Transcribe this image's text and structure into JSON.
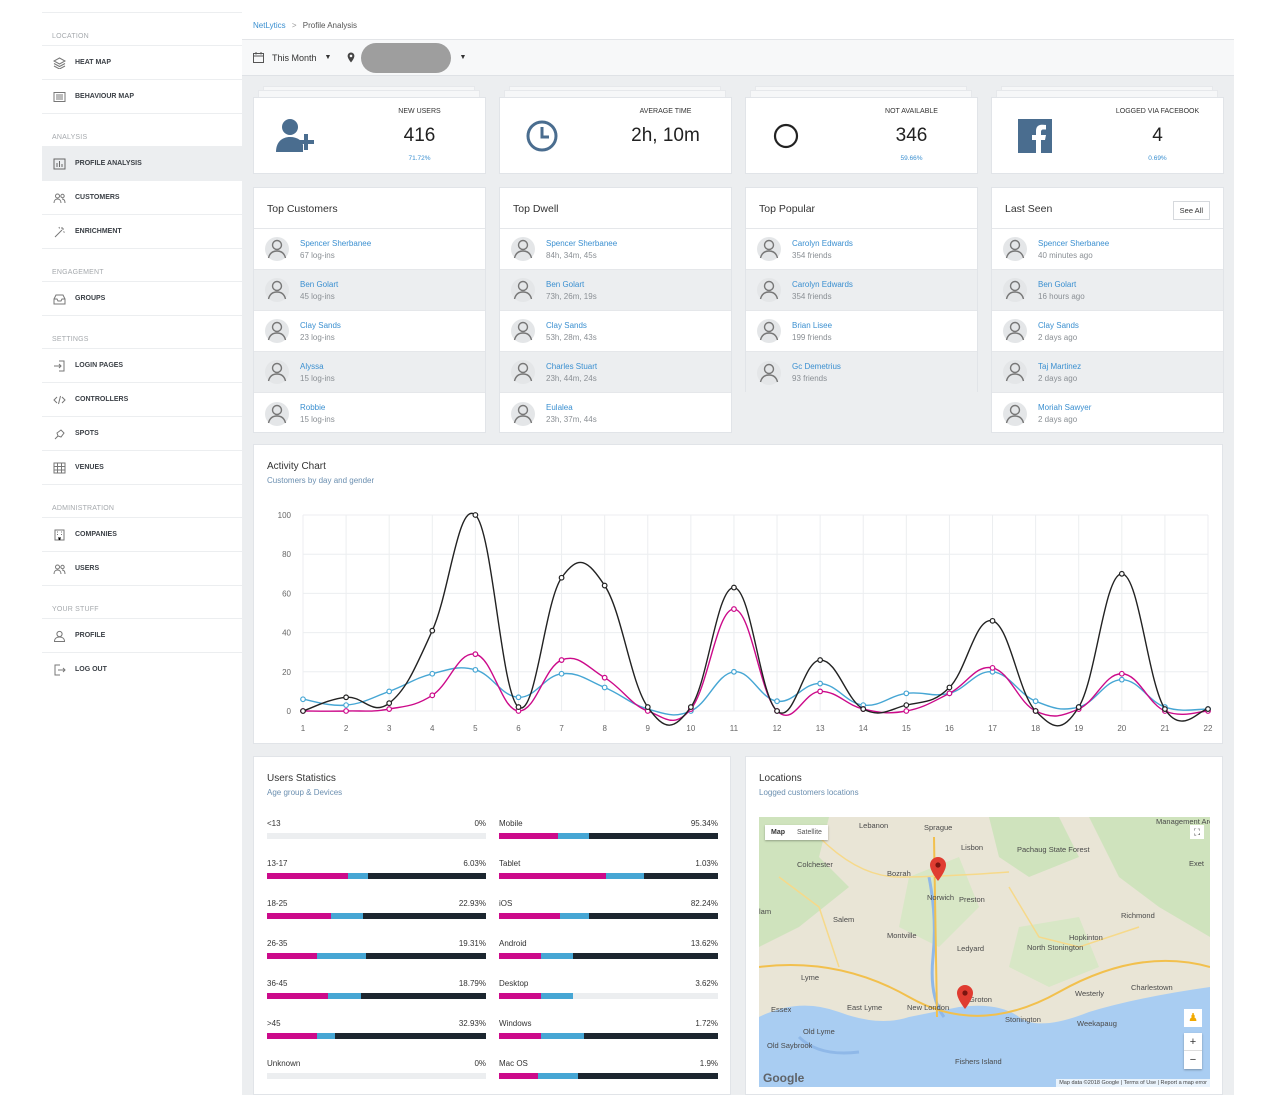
{
  "breadcrumb": {
    "root": "NetLytics",
    "separator": ">",
    "current": "Profile Analysis"
  },
  "toolbar": {
    "period": "This Month"
  },
  "sidebar": {
    "sections": [
      {
        "title": "LOCATION",
        "items": [
          {
            "label": "HEAT MAP",
            "icon": "layers-icon"
          },
          {
            "label": "BEHAVIOUR MAP",
            "icon": "list-icon"
          }
        ]
      },
      {
        "title": "ANALYSIS",
        "items": [
          {
            "label": "PROFILE ANALYSIS",
            "icon": "chart-icon",
            "active": true
          },
          {
            "label": "CUSTOMERS",
            "icon": "users-icon"
          },
          {
            "label": "ENRICHMENT",
            "icon": "magic-icon"
          }
        ]
      },
      {
        "title": "ENGAGEMENT",
        "items": [
          {
            "label": "GROUPS",
            "icon": "inbox-icon"
          }
        ]
      },
      {
        "title": "SETTINGS",
        "items": [
          {
            "label": "LOGIN PAGES",
            "icon": "login-icon"
          },
          {
            "label": "CONTROLLERS",
            "icon": "code-icon"
          },
          {
            "label": "SPOTS",
            "icon": "pin-icon"
          },
          {
            "label": "VENUES",
            "icon": "grid-icon"
          }
        ]
      },
      {
        "title": "ADMINISTRATION",
        "items": [
          {
            "label": "COMPANIES",
            "icon": "building-icon"
          },
          {
            "label": "USERS",
            "icon": "users-icon"
          }
        ]
      },
      {
        "title": "YOUR STUFF",
        "items": [
          {
            "label": "PROFILE",
            "icon": "user-icon"
          },
          {
            "label": "LOG OUT",
            "icon": "logout-icon"
          }
        ]
      }
    ]
  },
  "stats": [
    {
      "label": "NEW USERS",
      "value": "416",
      "pct": "71.72%",
      "icon": "add-user-icon"
    },
    {
      "label": "AVERAGE TIME",
      "value": "2h, 10m",
      "pct": "",
      "icon": "clock-icon"
    },
    {
      "label": "NOT AVAILABLE",
      "value": "346",
      "pct": "59.66%",
      "icon": "circle-icon"
    },
    {
      "label": "LOGGED VIA FACEBOOK",
      "value": "4",
      "pct": "0.69%",
      "icon": "facebook-icon"
    }
  ],
  "lists": [
    {
      "title": "Top Customers",
      "rows": [
        {
          "name": "Spencer Sherbanee",
          "sub": "67 log-ins"
        },
        {
          "name": "Ben Golart",
          "sub": "45 log-ins"
        },
        {
          "name": "Clay Sands",
          "sub": "23 log-ins"
        },
        {
          "name": "Alyssa",
          "sub": "15 log-ins"
        },
        {
          "name": "Robbie",
          "sub": "15 log-ins"
        }
      ]
    },
    {
      "title": "Top Dwell",
      "rows": [
        {
          "name": "Spencer Sherbanee",
          "sub": "84h, 34m, 45s"
        },
        {
          "name": "Ben Golart",
          "sub": "73h, 26m, 19s"
        },
        {
          "name": "Clay Sands",
          "sub": "53h, 28m, 43s"
        },
        {
          "name": "Charles Stuart",
          "sub": "23h, 44m, 24s"
        },
        {
          "name": "Eulalea",
          "sub": "23h, 37m, 44s"
        }
      ]
    },
    {
      "title": "Top Popular",
      "rows": [
        {
          "name": "Carolyn Edwards",
          "sub": "354 friends"
        },
        {
          "name": "Carolyn Edwards",
          "sub": "354 friends"
        },
        {
          "name": "Brian Lisee",
          "sub": "199 friends"
        },
        {
          "name": "Gc Demetrius",
          "sub": "93 friends"
        }
      ]
    },
    {
      "title": "Last Seen",
      "see_all": "See All",
      "rows": [
        {
          "name": "Spencer Sherbanee",
          "sub": "40 minutes ago"
        },
        {
          "name": "Ben Golart",
          "sub": "16 hours ago"
        },
        {
          "name": "Clay Sands",
          "sub": "2 days ago"
        },
        {
          "name": "Taj Martinez",
          "sub": "2 days ago"
        },
        {
          "name": "Moriah Sawyer",
          "sub": "2 days ago"
        }
      ]
    }
  ],
  "activity": {
    "title": "Activity Chart",
    "subtitle": "Customers by day and gender"
  },
  "chart_data": {
    "type": "line",
    "x": [
      1,
      2,
      3,
      4,
      5,
      6,
      7,
      8,
      9,
      10,
      11,
      12,
      13,
      14,
      15,
      16,
      17,
      18,
      19,
      20,
      21,
      22
    ],
    "ylim": [
      0,
      100
    ],
    "yticks": [
      0,
      20,
      40,
      60,
      80,
      100
    ],
    "grid": true,
    "series": [
      {
        "color": "#222222",
        "values": [
          0,
          7,
          4,
          41,
          100,
          2,
          68,
          64,
          2,
          2,
          63,
          0,
          26,
          1,
          3,
          12,
          46,
          0,
          2,
          70,
          1,
          1
        ]
      },
      {
        "color": "#cc0a8a",
        "values": [
          0,
          0,
          1,
          8,
          29,
          0,
          26,
          17,
          0,
          1,
          52,
          0,
          10,
          1,
          0,
          9,
          22,
          0,
          1,
          19,
          0,
          0
        ]
      },
      {
        "color": "#46a6d4",
        "values": [
          6,
          3,
          10,
          19,
          21,
          7,
          19,
          12,
          1,
          0,
          20,
          5,
          14,
          3,
          9,
          9,
          20,
          5,
          2,
          16,
          2,
          1
        ]
      }
    ]
  },
  "users_stats": {
    "title": "Users Statistics",
    "subtitle": "Age group & Devices",
    "age": [
      {
        "label": "<13",
        "value": "0%",
        "m": 0,
        "c": 0,
        "d": 0
      },
      {
        "label": "13-17",
        "value": "6.03%",
        "m": 0.37,
        "c": 0.09,
        "d": 0.54
      },
      {
        "label": "18-25",
        "value": "22.93%",
        "m": 0.29,
        "c": 0.15,
        "d": 0.56
      },
      {
        "label": "26-35",
        "value": "19.31%",
        "m": 0.23,
        "c": 0.22,
        "d": 0.55
      },
      {
        "label": "36-45",
        "value": "18.79%",
        "m": 0.28,
        "c": 0.15,
        "d": 0.57
      },
      {
        "label": ">45",
        "value": "32.93%",
        "m": 0.23,
        "c": 0.08,
        "d": 0.69
      },
      {
        "label": "Unknown",
        "value": "0%",
        "m": 0,
        "c": 0,
        "d": 0
      }
    ],
    "devices": [
      {
        "label": "Mobile",
        "value": "95.34%",
        "m": 0.27,
        "c": 0.14,
        "d": 0.59
      },
      {
        "label": "Tablet",
        "value": "1.03%",
        "m": 0.49,
        "c": 0.17,
        "d": 0.34
      },
      {
        "label": "iOS",
        "value": "82.24%",
        "m": 0.28,
        "c": 0.13,
        "d": 0.59
      },
      {
        "label": "Android",
        "value": "13.62%",
        "m": 0.19,
        "c": 0.15,
        "d": 0.66
      },
      {
        "label": "Desktop",
        "value": "3.62%",
        "m": 0.19,
        "c": 0.15,
        "d": 0
      },
      {
        "label": "Windows",
        "value": "1.72%",
        "m": 0.19,
        "c": 0.2,
        "d": 0.61
      },
      {
        "label": "Mac OS",
        "value": "1.9%",
        "m": 0.18,
        "c": 0.18,
        "d": 0.64
      }
    ]
  },
  "locations": {
    "title": "Locations",
    "subtitle": "Logged customers locations",
    "map_btn": "Map",
    "satellite_btn": "Satellite",
    "place_labels": [
      "Lebanon",
      "Sprague",
      "Lisbon",
      "Pachaug State Forest",
      "Colchester",
      "Bozrah",
      "Norwich",
      "Preston",
      "Salem",
      "Montville",
      "Ledyard",
      "North Stonington",
      "Hopkinton",
      "Richmond",
      "Lyme",
      "East Lyme",
      "New London",
      "Groton",
      "Stonington",
      "Westerly",
      "Charlestown",
      "Weekapaug",
      "Essex",
      "Old Lyme",
      "Old Saybrook",
      "Fishers Island",
      "Exet",
      "Management Area",
      "lam"
    ],
    "attribution": [
      "Map data ©2018 Google",
      "Terms of Use",
      "Report a map error"
    ],
    "logo": "Google",
    "zoom_in": "+",
    "zoom_out": "−"
  }
}
